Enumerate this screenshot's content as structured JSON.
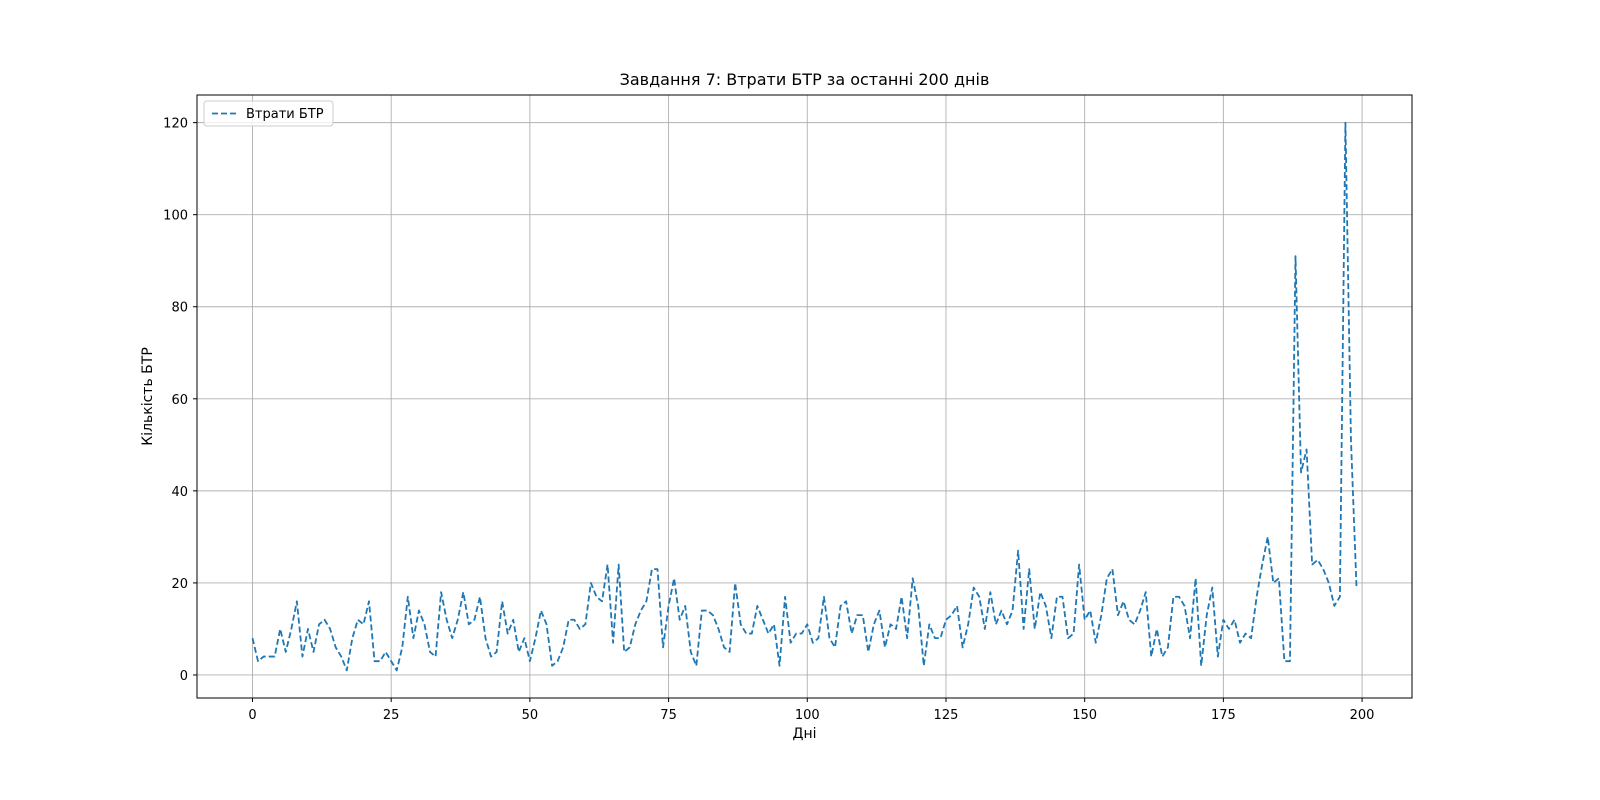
{
  "chart_data": {
    "type": "line",
    "title": "Завдання 7: Втрати БТР за останні 200 днів",
    "xlabel": "Дні",
    "ylabel": "Кількість БТР",
    "xlim": [
      -10,
      209
    ],
    "ylim": [
      -5,
      126
    ],
    "xticks": [
      0,
      25,
      50,
      75,
      100,
      125,
      150,
      175,
      200
    ],
    "yticks": [
      0,
      20,
      40,
      60,
      80,
      100,
      120
    ],
    "grid": true,
    "legend_position": "top-left",
    "series": [
      {
        "name": "Втрати БТР",
        "color": "#1f77b4",
        "line_style": "dashed",
        "x": [
          0,
          1,
          2,
          3,
          4,
          5,
          6,
          7,
          8,
          9,
          10,
          11,
          12,
          13,
          14,
          15,
          16,
          17,
          18,
          19,
          20,
          21,
          22,
          23,
          24,
          25,
          26,
          27,
          28,
          29,
          30,
          31,
          32,
          33,
          34,
          35,
          36,
          37,
          38,
          39,
          40,
          41,
          42,
          43,
          44,
          45,
          46,
          47,
          48,
          49,
          50,
          51,
          52,
          53,
          54,
          55,
          56,
          57,
          58,
          59,
          60,
          61,
          62,
          63,
          64,
          65,
          66,
          67,
          68,
          69,
          70,
          71,
          72,
          73,
          74,
          75,
          76,
          77,
          78,
          79,
          80,
          81,
          82,
          83,
          84,
          85,
          86,
          87,
          88,
          89,
          90,
          91,
          92,
          93,
          94,
          95,
          96,
          97,
          98,
          99,
          100,
          101,
          102,
          103,
          104,
          105,
          106,
          107,
          108,
          109,
          110,
          111,
          112,
          113,
          114,
          115,
          116,
          117,
          118,
          119,
          120,
          121,
          122,
          123,
          124,
          125,
          126,
          127,
          128,
          129,
          130,
          131,
          132,
          133,
          134,
          135,
          136,
          137,
          138,
          139,
          140,
          141,
          142,
          143,
          144,
          145,
          146,
          147,
          148,
          149,
          150,
          151,
          152,
          153,
          154,
          155,
          156,
          157,
          158,
          159,
          160,
          161,
          162,
          163,
          164,
          165,
          166,
          167,
          168,
          169,
          170,
          171,
          172,
          173,
          174,
          175,
          176,
          177,
          178,
          179,
          180,
          181,
          182,
          183,
          184,
          185,
          186,
          187,
          188,
          189,
          190,
          191,
          192,
          193,
          194,
          195,
          196,
          197,
          198,
          199
        ],
        "values": [
          8,
          3,
          4,
          4,
          4,
          10,
          5,
          10,
          16,
          4,
          10,
          5,
          11,
          12,
          10,
          6,
          4,
          1,
          8,
          12,
          11,
          16,
          3,
          3,
          5,
          3,
          1,
          6,
          17,
          8,
          14,
          11,
          5,
          4,
          18,
          12,
          8,
          12,
          18,
          11,
          12,
          17,
          8,
          4,
          5,
          16,
          9,
          12,
          5,
          8,
          3,
          8,
          14,
          11,
          2,
          3,
          6,
          12,
          12,
          10,
          11,
          20,
          17,
          16,
          24,
          7,
          24,
          5,
          6,
          11,
          14,
          16,
          23,
          23,
          6,
          15,
          21,
          12,
          15,
          5,
          2,
          14,
          14,
          13,
          10,
          6,
          5,
          20,
          11,
          9,
          9,
          15,
          12,
          9,
          11,
          2,
          17,
          7,
          9,
          9,
          11,
          7,
          8,
          17,
          8,
          6,
          15,
          16,
          9,
          13,
          13,
          5,
          11,
          14,
          6,
          11,
          10,
          17,
          8,
          21,
          15,
          2,
          11,
          8,
          8,
          12,
          13,
          15,
          6,
          11,
          19,
          17,
          10,
          18,
          11,
          14,
          11,
          14,
          27,
          10,
          23,
          10,
          18,
          15,
          8,
          17,
          17,
          8,
          9,
          24,
          12,
          14,
          7,
          13,
          21,
          23,
          13,
          16,
          12,
          11,
          14,
          18,
          4,
          10,
          4,
          6,
          17,
          17,
          15,
          8,
          21,
          2,
          13,
          19,
          4,
          12,
          10,
          12,
          7,
          9,
          8,
          17,
          24,
          30,
          20,
          21,
          3,
          3,
          91,
          44,
          49,
          24,
          25,
          23,
          20,
          15,
          17,
          120,
          51,
          19
        ]
      }
    ]
  }
}
